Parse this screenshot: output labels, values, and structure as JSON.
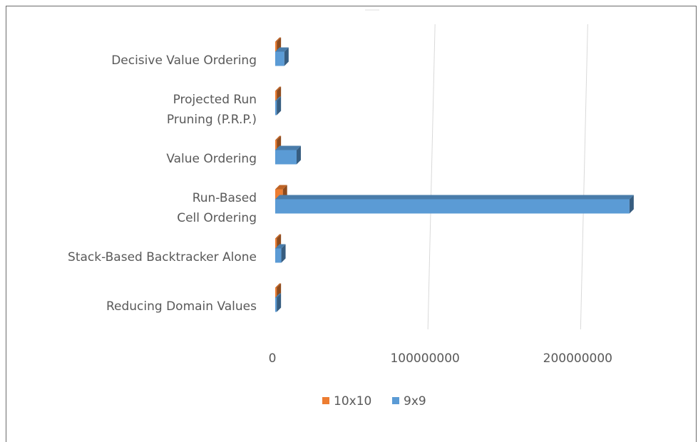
{
  "chart_data": {
    "type": "bar",
    "orientation": "horizontal",
    "categories": [
      "Decisive Value Ordering",
      "Projected Run\nPruning (P.R.P.)",
      "Value Ordering",
      "Run-Based\nCell Ordering",
      "Stack-Based Backtracker Alone",
      "Reducing Domain Values"
    ],
    "series": [
      {
        "name": "10x10",
        "color": "#ed7d31",
        "values": [
          1000000,
          1000000,
          1000000,
          5000000,
          1000000,
          1000000
        ]
      },
      {
        "name": "9x9",
        "color": "#5b9bd5",
        "values": [
          6000000,
          1000000,
          14000000,
          232000000,
          4000000,
          1000000
        ]
      }
    ],
    "xlim": [
      0,
      240000000
    ],
    "xticks": [
      0,
      100000000,
      200000000
    ],
    "grid": true,
    "legend": "bottom"
  }
}
